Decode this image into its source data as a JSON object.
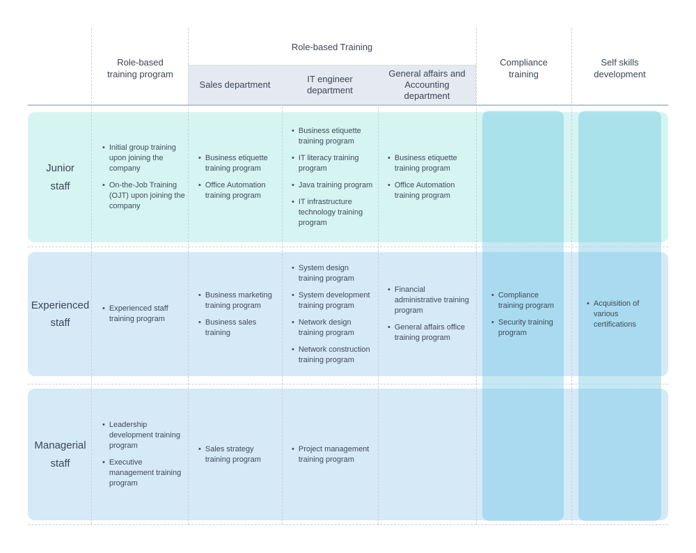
{
  "colors": {
    "junior_row_bg": "#d6f4f2",
    "staff_row_bg": "#d5e9f7",
    "band_overlay": "rgba(86,190,224,0.34)",
    "subheader_bg": "#e5e9f1",
    "header_rule": "#b8c5cf",
    "grid_dash": "#c9d0d9",
    "text": "#3f4a58",
    "heading_text": "#3a4655"
  },
  "header": {
    "program": "Role-based\ntraining program",
    "group": "Role-based Training",
    "departments": [
      "Sales department",
      "IT engineer\ndepartment",
      "General affairs and\nAccounting\ndepartment"
    ],
    "compliance": "Compliance\ntraining",
    "self_skills": "Self skills\ndevelopment"
  },
  "rows": [
    {
      "label": "Junior\nstaff",
      "program": [
        "Initial group training upon joining the company",
        "On-the-Job Training (OJT) upon joining the company"
      ],
      "sales": [
        "Business etiquette training program",
        "Office Automation training program"
      ],
      "it": [
        "Business etiquette training program",
        "IT literacy training program",
        "Java training program",
        "IT infrastructure technology training program"
      ],
      "general_affairs": [
        "Business etiquette training program",
        "Office Automation training program"
      ],
      "compliance": [],
      "self_skills": []
    },
    {
      "label": "Experienced\nstaff",
      "program": [
        "Experienced staff training program"
      ],
      "sales": [
        "Business marketing training program",
        "Business sales training"
      ],
      "it": [
        "System design training program",
        "System development training program",
        "Network design training program",
        "Network construction training program"
      ],
      "general_affairs": [
        "Financial administrative training program",
        "General affairs office training program"
      ],
      "compliance": [
        "Compliance training program",
        "Security training program"
      ],
      "self_skills": [
        "Acquisition of various certifications"
      ]
    },
    {
      "label": "Managerial\nstaff",
      "program": [
        "Leadership development training program",
        "Executive management training program"
      ],
      "sales": [
        "Sales strategy training program"
      ],
      "it": [
        "Project management training program"
      ],
      "general_affairs": [],
      "compliance": [],
      "self_skills": []
    }
  ]
}
